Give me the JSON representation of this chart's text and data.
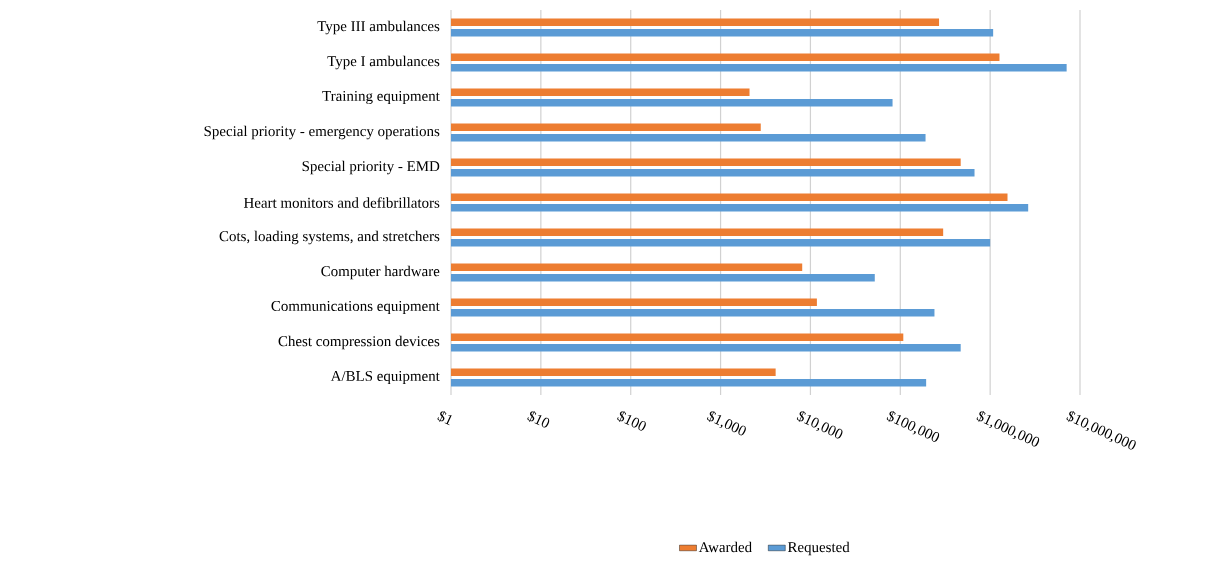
{
  "chart_data": {
    "type": "bar",
    "orientation": "horizontal",
    "log": "x",
    "grid": "x",
    "legend": "bottom",
    "categories": [
      "Type III ambulances",
      "Type I ambulances",
      "Training equipment",
      "Special priority - emergency operations",
      "Special priority - EMD",
      "Heart monitors and defibrillators",
      "Cots, loading systems, and stretchers",
      "Computer hardware",
      "Communications equipment",
      "Chest compression devices",
      "A/BLS equipment"
    ],
    "series": [
      {
        "name": "Awarded",
        "color": "#ed7d31",
        "values": [
          270000,
          1270000,
          2100,
          2800,
          470000,
          1560000,
          300000,
          8100,
          11800,
          108000,
          4100
        ]
      },
      {
        "name": "Requested",
        "color": "#5b9bd5",
        "values": [
          1080000,
          7100000,
          82000,
          191000,
          670000,
          2650000,
          1000000,
          52000,
          240000,
          470000,
          194000
        ]
      }
    ],
    "xlim": [
      1,
      10000000
    ],
    "xticks": [
      {
        "value": 1,
        "label": "$1"
      },
      {
        "value": 10,
        "label": "$10"
      },
      {
        "value": 100,
        "label": "$100"
      },
      {
        "value": 1000,
        "label": "$1,000"
      },
      {
        "value": 10000,
        "label": "$10,000"
      },
      {
        "value": 100000,
        "label": "$100,000"
      },
      {
        "value": 1000000,
        "label": "$1,000,000"
      },
      {
        "value": 10000000,
        "label": "$10,000,000"
      }
    ]
  }
}
